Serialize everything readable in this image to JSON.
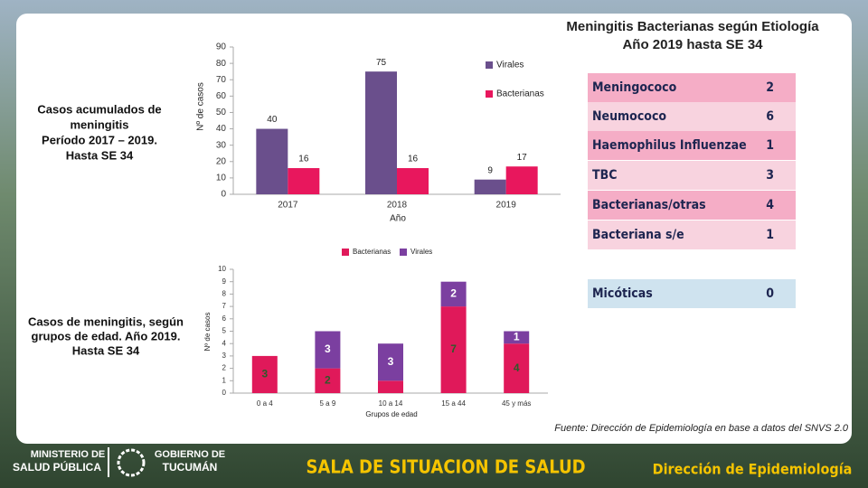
{
  "header": {
    "title_lines": [
      "Meningitis Bacterianas según Etiología",
      "Año 2019 hasta SE 34"
    ]
  },
  "captions": {
    "top_lines": [
      "Casos acumulados de",
      "meningitis",
      "Período 2017 – 2019.",
      "Hasta SE 34"
    ],
    "bottom_lines": [
      "Casos de meningitis, según",
      "grupos de edad. Año 2019.",
      "Hasta SE 34"
    ]
  },
  "chart_data": [
    {
      "type": "bar",
      "categories": [
        "2017",
        "2018",
        "2019"
      ],
      "x_label": "Año",
      "y_label": "Nº de casos",
      "ylim": [
        0,
        90
      ],
      "yticks": [
        0,
        10,
        20,
        30,
        40,
        50,
        60,
        70,
        80,
        90
      ],
      "legend": "right",
      "series": [
        {
          "name": "Virales",
          "color": "#6a4f8c",
          "values": [
            40,
            75,
            9
          ]
        },
        {
          "name": "Bacterianas",
          "color": "#e8175d",
          "values": [
            16,
            16,
            17
          ]
        }
      ]
    },
    {
      "type": "bar",
      "stacked": true,
      "categories": [
        "0 a 4",
        "5 a 9",
        "10 a 14",
        "15 a 44",
        "45 y más"
      ],
      "x_label": "Grupos de edad",
      "y_label": "Nº de casos",
      "ylim": [
        0,
        10
      ],
      "yticks": [
        0,
        1,
        2,
        3,
        4,
        5,
        6,
        7,
        8,
        9,
        10
      ],
      "legend": "top",
      "series": [
        {
          "name": "Bacterianas",
          "color": "#e0195a",
          "values": [
            3,
            2,
            1,
            7,
            4
          ],
          "value_labels": [
            "3",
            "2",
            null,
            "7",
            "4"
          ]
        },
        {
          "name": "Virales",
          "color": "#7b3fa0",
          "values": [
            null,
            3,
            3,
            2,
            1
          ]
        }
      ]
    }
  ],
  "table": {
    "rows": [
      [
        "Meningococo",
        "2"
      ],
      [
        "Neumococo",
        "6"
      ],
      [
        "Haemophilus Influenzae",
        "1"
      ],
      [
        "TBC",
        "3"
      ],
      [
        "Bacterianas/otras",
        "4"
      ],
      [
        "Bacteriana s/e",
        "1"
      ],
      [
        "Micóticas",
        "0"
      ]
    ]
  },
  "footer": {
    "source": "Fuente: Dirección de Epidemiología en base a datos del SNVS 2.0",
    "ministry_lines": [
      "MINISTERIO DE",
      "SALUD PÚBLICA"
    ],
    "government_lines": [
      "GOBIERNO DE",
      "TUCUMÁN"
    ],
    "room": "SALA DE SITUACION DE SALUD",
    "direction": "Dirección de Epidemiología"
  }
}
